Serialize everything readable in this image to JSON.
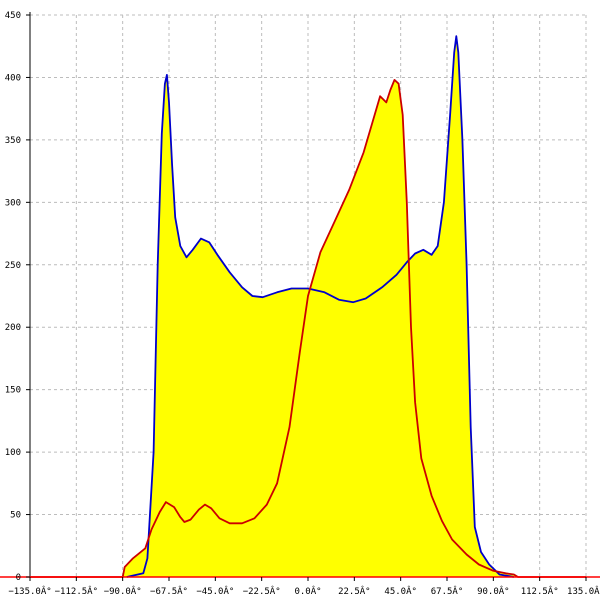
{
  "chart_data": {
    "type": "area",
    "title": "",
    "xlabel": "",
    "ylabel": "",
    "xlim": [
      -135,
      135
    ],
    "ylim": [
      0,
      450
    ],
    "grid": true,
    "x_ticks": [
      -135,
      -112.5,
      -90,
      -67.5,
      -45,
      -22.5,
      0,
      22.5,
      45,
      67.5,
      90,
      112.5,
      135
    ],
    "x_tick_labels": [
      "−135.0Â°",
      "−112.5Â°",
      "−90.0Â°",
      "−67.5Â°",
      "−45.0Â°",
      "−22.5Â°",
      "0.0Â°",
      "22.5Â°",
      "45.0Â°",
      "67.5Â°",
      "90.0Â°",
      "112.5Â°",
      "135.0Â°"
    ],
    "y_ticks": [
      0,
      50,
      100,
      150,
      200,
      250,
      300,
      350,
      400,
      450
    ],
    "y_tick_labels": [
      "0",
      "50",
      "100",
      "150",
      "200",
      "250",
      "300",
      "350",
      "400",
      "450"
    ],
    "fill_color": "#ffff00",
    "series": [
      {
        "color": "#0000cc",
        "filled": true,
        "points": [
          [
            -88,
            0
          ],
          [
            -80,
            3
          ],
          [
            -78,
            15
          ],
          [
            -75,
            100
          ],
          [
            -73,
            250
          ],
          [
            -71,
            355
          ],
          [
            -69.5,
            395
          ],
          [
            -68.5,
            402
          ],
          [
            -67.5,
            380
          ],
          [
            -66,
            330
          ],
          [
            -64.5,
            288
          ],
          [
            -62,
            265
          ],
          [
            -59,
            256
          ],
          [
            -56,
            262
          ],
          [
            -52,
            271
          ],
          [
            -48,
            268
          ],
          [
            -44,
            258
          ],
          [
            -38,
            244
          ],
          [
            -32,
            232
          ],
          [
            -27,
            225
          ],
          [
            -22,
            224
          ],
          [
            -15,
            228
          ],
          [
            -8,
            231
          ],
          [
            0,
            231
          ],
          [
            8,
            228
          ],
          [
            15,
            222
          ],
          [
            22,
            220
          ],
          [
            28,
            223
          ],
          [
            36,
            232
          ],
          [
            43,
            242
          ],
          [
            48,
            252
          ],
          [
            52,
            259
          ],
          [
            56,
            262
          ],
          [
            60,
            258
          ],
          [
            63,
            265
          ],
          [
            66,
            300
          ],
          [
            69,
            370
          ],
          [
            71,
            420
          ],
          [
            72,
            433
          ],
          [
            73,
            420
          ],
          [
            75,
            350
          ],
          [
            77,
            250
          ],
          [
            79,
            120
          ],
          [
            81,
            40
          ],
          [
            84,
            20
          ],
          [
            88,
            10
          ],
          [
            93,
            2
          ],
          [
            100,
            0
          ]
        ]
      },
      {
        "color": "#cc0000",
        "filled": true,
        "points": [
          [
            -135,
            0
          ],
          [
            -90,
            0
          ],
          [
            -89,
            8
          ],
          [
            -85,
            15
          ],
          [
            -79,
            23
          ],
          [
            -76,
            38
          ],
          [
            -72,
            52
          ],
          [
            -69,
            60
          ],
          [
            -65,
            56
          ],
          [
            -62,
            48
          ],
          [
            -60,
            44
          ],
          [
            -57,
            46
          ],
          [
            -53,
            54
          ],
          [
            -50,
            58
          ],
          [
            -47,
            55
          ],
          [
            -43,
            47
          ],
          [
            -38,
            43
          ],
          [
            -32,
            43
          ],
          [
            -26,
            47
          ],
          [
            -20,
            58
          ],
          [
            -15,
            75
          ],
          [
            -9,
            120
          ],
          [
            -4,
            180
          ],
          [
            0,
            225
          ],
          [
            6,
            260
          ],
          [
            13,
            285
          ],
          [
            20,
            310
          ],
          [
            27,
            340
          ],
          [
            32,
            368
          ],
          [
            35,
            385
          ],
          [
            38,
            380
          ],
          [
            40,
            390
          ],
          [
            42,
            398
          ],
          [
            44,
            395
          ],
          [
            46,
            370
          ],
          [
            48,
            300
          ],
          [
            50,
            200
          ],
          [
            52,
            140
          ],
          [
            55,
            95
          ],
          [
            60,
            65
          ],
          [
            65,
            45
          ],
          [
            70,
            30
          ],
          [
            77,
            18
          ],
          [
            83,
            10
          ],
          [
            90,
            5
          ],
          [
            96,
            3
          ],
          [
            100,
            2
          ],
          [
            102,
            0
          ],
          [
            135,
            0
          ]
        ]
      }
    ]
  }
}
